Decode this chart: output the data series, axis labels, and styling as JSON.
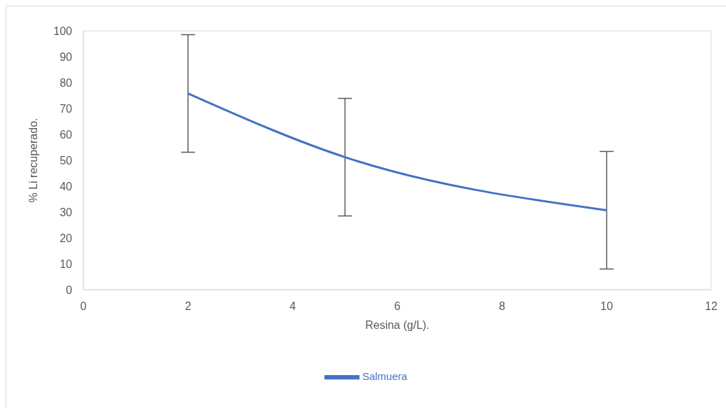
{
  "chart_data": {
    "type": "line",
    "xlabel": "Resina (g/L).",
    "ylabel": "% Li recuperado.",
    "x": [
      2,
      5,
      10
    ],
    "series": [
      {
        "name": "Salmuera",
        "color": "#4472c4",
        "values": [
          75.8,
          51.2,
          30.7
        ],
        "errors": [
          22.7,
          22.7,
          22.7
        ]
      }
    ],
    "xlim": [
      0,
      12
    ],
    "xticks": [
      0,
      2,
      4,
      6,
      8,
      10,
      12
    ],
    "ylim": [
      0,
      100
    ],
    "yticks": [
      0,
      10,
      20,
      30,
      40,
      50,
      60,
      70,
      80,
      90,
      100
    ],
    "grid": false,
    "legend": "bottom",
    "marker": "none",
    "line_style": "solid"
  }
}
